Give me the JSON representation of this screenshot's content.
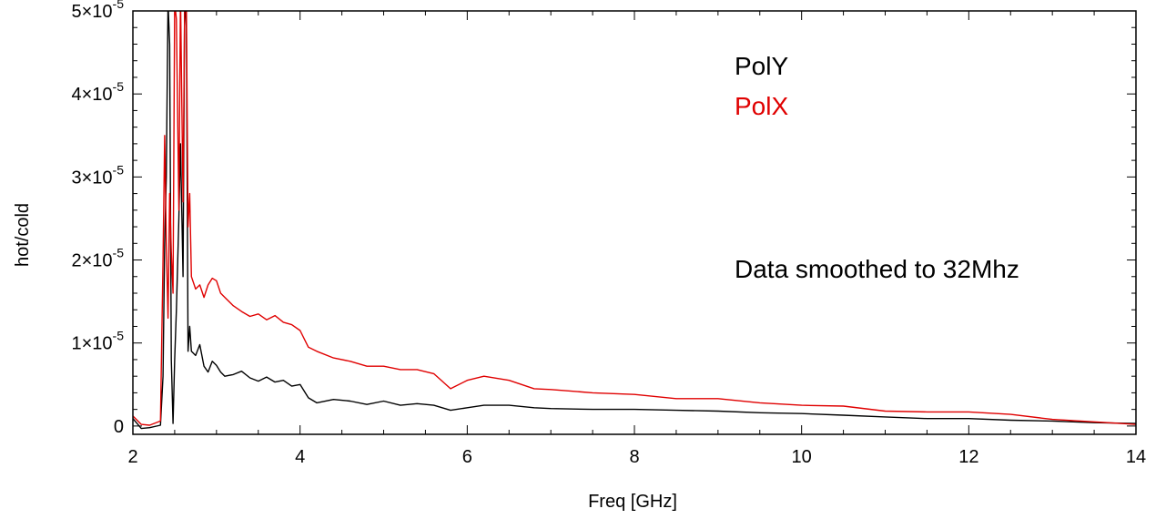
{
  "chart_data": {
    "type": "line",
    "xlabel": "Freq [GHz]",
    "ylabel": "hot/cold",
    "xlim": [
      2,
      14
    ],
    "ylim": [
      -1e-06,
      5e-05
    ],
    "x_ticks": [
      {
        "value": 2,
        "label": "2"
      },
      {
        "value": 4,
        "label": "4"
      },
      {
        "value": 6,
        "label": "6"
      },
      {
        "value": 8,
        "label": "8"
      },
      {
        "value": 10,
        "label": "10"
      },
      {
        "value": 12,
        "label": "12"
      },
      {
        "value": 14,
        "label": "14"
      }
    ],
    "y_ticks": [
      {
        "value": 0,
        "mant": "0",
        "exp": ""
      },
      {
        "value": 1e-05,
        "mant": "1×10",
        "exp": "-5"
      },
      {
        "value": 2e-05,
        "mant": "2×10",
        "exp": "-5"
      },
      {
        "value": 3e-05,
        "mant": "3×10",
        "exp": "-5"
      },
      {
        "value": 4e-05,
        "mant": "4×10",
        "exp": "-5"
      },
      {
        "value": 5e-05,
        "mant": "5×10",
        "exp": "-5"
      }
    ],
    "grid": false,
    "annotation": "Data smoothed to 32Mhz",
    "series": [
      {
        "name": "PolY",
        "color": "#000000",
        "x": [
          2.0,
          2.1,
          2.2,
          2.33,
          2.36,
          2.38,
          2.4,
          2.42,
          2.44,
          2.46,
          2.48,
          2.5,
          2.52,
          2.55,
          2.57,
          2.6,
          2.62,
          2.64,
          2.66,
          2.68,
          2.7,
          2.75,
          2.8,
          2.85,
          2.9,
          2.95,
          3.0,
          3.05,
          3.1,
          3.2,
          3.3,
          3.4,
          3.5,
          3.6,
          3.7,
          3.8,
          3.9,
          4.0,
          4.1,
          4.2,
          4.4,
          4.6,
          4.8,
          5.0,
          5.2,
          5.4,
          5.6,
          5.8,
          6.0,
          6.2,
          6.5,
          6.8,
          7.0,
          7.5,
          8.0,
          8.5,
          9.0,
          9.5,
          10.0,
          10.5,
          11.0,
          11.5,
          12.0,
          12.5,
          13.0,
          13.5,
          14.0
        ],
        "y": [
          9e-07,
          -3e-07,
          -2e-07,
          1e-07,
          6e-06,
          2.2e-05,
          3e-05,
          5.1e-05,
          4.6e-05,
          8e-06,
          3e-07,
          8e-06,
          1.4e-05,
          2.5e-05,
          3.4e-05,
          1.8e-05,
          5.2e-05,
          4.8e-05,
          9e-06,
          1.2e-05,
          9e-06,
          8.5e-06,
          9.8e-06,
          7.2e-06,
          6.5e-06,
          7.8e-06,
          7.3e-06,
          6.5e-06,
          6e-06,
          6.2e-06,
          6.6e-06,
          5.8e-06,
          5.4e-06,
          5.9e-06,
          5.3e-06,
          5.5e-06,
          4.8e-06,
          5e-06,
          3.4e-06,
          2.8e-06,
          3.2e-06,
          3e-06,
          2.6e-06,
          3e-06,
          2.5e-06,
          2.7e-06,
          2.5e-06,
          1.9e-06,
          2.2e-06,
          2.5e-06,
          2.5e-06,
          2.2e-06,
          2.1e-06,
          2e-06,
          2e-06,
          1.9e-06,
          1.8e-06,
          1.6e-06,
          1.5e-06,
          1.3e-06,
          1.1e-06,
          9e-07,
          9e-07,
          7e-07,
          6e-07,
          4e-07,
          3e-07
        ]
      },
      {
        "name": "PolX",
        "color": "#e00000",
        "x": [
          2.0,
          2.1,
          2.2,
          2.33,
          2.36,
          2.38,
          2.4,
          2.42,
          2.44,
          2.46,
          2.48,
          2.5,
          2.52,
          2.55,
          2.57,
          2.6,
          2.62,
          2.64,
          2.66,
          2.68,
          2.7,
          2.75,
          2.8,
          2.85,
          2.9,
          2.95,
          3.0,
          3.05,
          3.1,
          3.2,
          3.3,
          3.4,
          3.5,
          3.6,
          3.7,
          3.8,
          3.9,
          4.0,
          4.1,
          4.2,
          4.4,
          4.6,
          4.8,
          5.0,
          5.2,
          5.4,
          5.6,
          5.8,
          6.0,
          6.2,
          6.5,
          6.8,
          7.0,
          7.5,
          8.0,
          8.5,
          9.0,
          9.5,
          10.0,
          10.5,
          11.0,
          11.5,
          12.0,
          12.5,
          13.0,
          13.5,
          14.0
        ],
        "y": [
          1.2e-06,
          2e-07,
          1e-07,
          6e-07,
          2e-05,
          3.5e-05,
          2.2e-05,
          1.3e-05,
          2.8e-05,
          2.1e-05,
          1.6e-05,
          5.1e-05,
          4.9e-05,
          2.6e-05,
          5.2e-05,
          2.7e-05,
          5.1e-05,
          5e-05,
          2.4e-05,
          2.8e-05,
          1.8e-05,
          1.65e-05,
          1.7e-05,
          1.55e-05,
          1.7e-05,
          1.78e-05,
          1.75e-05,
          1.6e-05,
          1.55e-05,
          1.45e-05,
          1.38e-05,
          1.32e-05,
          1.35e-05,
          1.28e-05,
          1.33e-05,
          1.25e-05,
          1.22e-05,
          1.15e-05,
          9.5e-06,
          9e-06,
          8.2e-06,
          7.8e-06,
          7.2e-06,
          7.2e-06,
          6.8e-06,
          6.8e-06,
          6.3e-06,
          4.5e-06,
          5.5e-06,
          6e-06,
          5.5e-06,
          4.5e-06,
          4.4e-06,
          4e-06,
          3.8e-06,
          3.3e-06,
          3.3e-06,
          2.8e-06,
          2.5e-06,
          2.4e-06,
          1.8e-06,
          1.7e-06,
          1.7e-06,
          1.4e-06,
          8e-07,
          5e-07,
          2e-07
        ]
      }
    ]
  }
}
